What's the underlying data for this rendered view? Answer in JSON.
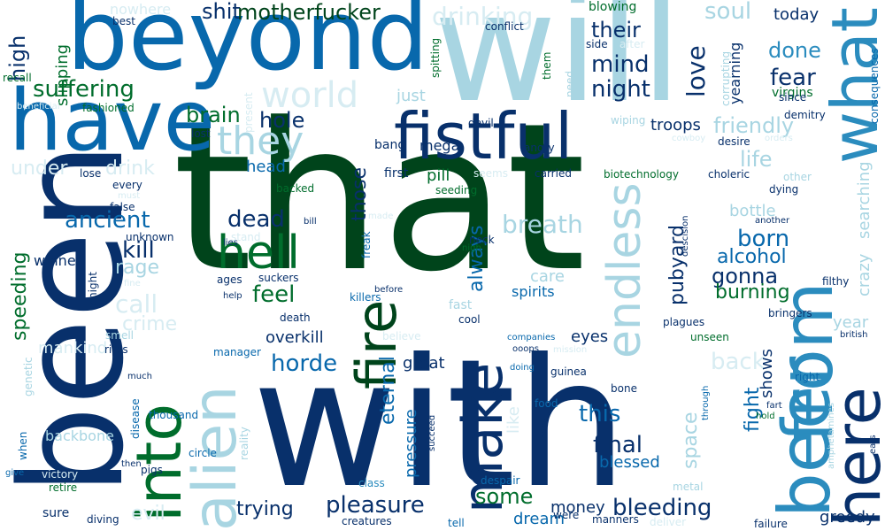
{
  "words": [
    {
      "t": "that",
      "c": "#00441b"
    },
    {
      "t": "with",
      "c": "#08306b"
    },
    {
      "t": "been",
      "c": "#08306b"
    },
    {
      "t": "will",
      "c": "#a8d5e2"
    },
    {
      "t": "beyond",
      "c": "#0868ac"
    },
    {
      "t": "have",
      "c": "#0868ac"
    },
    {
      "t": "fistful",
      "c": "#08306b"
    },
    {
      "t": "from",
      "c": "#2b8cbe"
    },
    {
      "t": "what",
      "c": "#2b8cbe"
    },
    {
      "t": "beer",
      "c": "#2b8cbe"
    },
    {
      "t": "here",
      "c": "#08306b"
    },
    {
      "t": "into",
      "c": "#006d2c"
    },
    {
      "t": "alien",
      "c": "#a8d5e2"
    },
    {
      "t": "make",
      "c": "#08306b"
    },
    {
      "t": "fire",
      "c": "#00441b"
    },
    {
      "t": "hell",
      "c": "#006d2c"
    },
    {
      "t": "endless",
      "c": "#a8d5e2"
    },
    {
      "t": "they",
      "c": "#a8d5e2"
    },
    {
      "t": "world",
      "c": "#d7ecf2"
    },
    {
      "t": "suffering",
      "c": "#006d2c"
    },
    {
      "t": "high",
      "c": "#08306b"
    },
    {
      "t": "drinking",
      "c": "#d7ecf2"
    },
    {
      "t": "shit",
      "c": "#08306b"
    },
    {
      "t": "motherfucker",
      "c": "#00441b"
    },
    {
      "t": "mind",
      "c": "#08306b"
    },
    {
      "t": "night",
      "c": "#08306b"
    },
    {
      "t": "their",
      "c": "#08306b"
    },
    {
      "t": "love",
      "c": "#08306b"
    },
    {
      "t": "soul",
      "c": "#a8d5e2"
    },
    {
      "t": "fear",
      "c": "#08306b"
    },
    {
      "t": "done",
      "c": "#2b8cbe"
    },
    {
      "t": "today",
      "c": "#08306b"
    },
    {
      "t": "brain",
      "c": "#006d2c"
    },
    {
      "t": "hole",
      "c": "#08306b"
    },
    {
      "t": "friendly",
      "c": "#a8d5e2"
    },
    {
      "t": "life",
      "c": "#a8d5e2"
    },
    {
      "t": "ancient",
      "c": "#0868ac"
    },
    {
      "t": "dead",
      "c": "#08306b"
    },
    {
      "t": "kill",
      "c": "#08306b"
    },
    {
      "t": "born",
      "c": "#0868ac"
    },
    {
      "t": "alcohol",
      "c": "#0868ac"
    },
    {
      "t": "gonna",
      "c": "#08306b"
    },
    {
      "t": "burning",
      "c": "#006d2c"
    },
    {
      "t": "breath",
      "c": "#a8d5e2"
    },
    {
      "t": "always",
      "c": "#0868ac"
    },
    {
      "t": "pubyard",
      "c": "#08306b"
    },
    {
      "t": "feel",
      "c": "#006d2c"
    },
    {
      "t": "call",
      "c": "#d7ecf2"
    },
    {
      "t": "crime",
      "c": "#d7ecf2"
    },
    {
      "t": "rage",
      "c": "#a8d5e2"
    },
    {
      "t": "speeding",
      "c": "#006d2c"
    },
    {
      "t": "horde",
      "c": "#0868ac"
    },
    {
      "t": "eternal",
      "c": "#0868ac"
    },
    {
      "t": "back",
      "c": "#d7ecf2"
    },
    {
      "t": "fight",
      "c": "#0868ac"
    },
    {
      "t": "space",
      "c": "#a8d5e2"
    },
    {
      "t": "this",
      "c": "#0868ac"
    },
    {
      "t": "final",
      "c": "#08306b"
    },
    {
      "t": "blessed",
      "c": "#0868ac"
    },
    {
      "t": "trying",
      "c": "#08306b"
    },
    {
      "t": "pleasure",
      "c": "#08306b"
    },
    {
      "t": "some",
      "c": "#006d2c"
    },
    {
      "t": "money",
      "c": "#08306b"
    },
    {
      "t": "bleeding",
      "c": "#08306b"
    },
    {
      "t": "dream",
      "c": "#0868ac"
    },
    {
      "t": "greedy",
      "c": "#08306b"
    },
    {
      "t": "evil",
      "c": "#d7ecf2"
    },
    {
      "t": "head",
      "c": "#0868ac"
    },
    {
      "t": "drink",
      "c": "#d7ecf2"
    },
    {
      "t": "under",
      "c": "#d7ecf2"
    },
    {
      "t": "those",
      "c": "#08306b"
    },
    {
      "t": "troops",
      "c": "#08306b"
    },
    {
      "t": "shows",
      "c": "#08306b"
    },
    {
      "t": "crazy",
      "c": "#a8d5e2"
    },
    {
      "t": "searching",
      "c": "#a8d5e2"
    },
    {
      "t": "bottle",
      "c": "#a8d5e2"
    },
    {
      "t": "pressure",
      "c": "#0868ac"
    },
    {
      "t": "like",
      "c": "#d7ecf2"
    },
    {
      "t": "overkill",
      "c": "#08306b"
    },
    {
      "t": "great",
      "c": "#08306b"
    },
    {
      "t": "year",
      "c": "#a8d5e2"
    },
    {
      "t": "eyes",
      "c": "#08306b"
    },
    {
      "t": "care",
      "c": "#a8d5e2"
    },
    {
      "t": "spirits",
      "c": "#0868ac"
    },
    {
      "t": "pill",
      "c": "#006d2c"
    },
    {
      "t": "winner",
      "c": "#08306b"
    },
    {
      "t": "backbone",
      "c": "#a8d5e2"
    },
    {
      "t": "mankind",
      "c": "#d7ecf2"
    },
    {
      "t": "slipping",
      "c": "#006d2c"
    },
    {
      "t": "nowhere",
      "c": "#d7ecf2"
    },
    {
      "t": "best",
      "c": "#08306b"
    },
    {
      "t": "conflict",
      "c": "#08306b"
    },
    {
      "t": "blowing",
      "c": "#006d2c"
    },
    {
      "t": "side",
      "c": "#08306b"
    },
    {
      "t": "after",
      "c": "#d7ecf2"
    },
    {
      "t": "corrupting",
      "c": "#a8d5e2"
    },
    {
      "t": "yearning",
      "c": "#08306b"
    },
    {
      "t": "virgins",
      "c": "#006d2c"
    },
    {
      "t": "demitry",
      "c": "#08306b"
    },
    {
      "t": "consequences",
      "c": "#0868ac"
    },
    {
      "t": "since",
      "c": "#08306b"
    },
    {
      "t": "recall",
      "c": "#006d2c"
    },
    {
      "t": "spitting",
      "c": "#006d2c"
    },
    {
      "t": "present",
      "c": "#d7ecf2"
    },
    {
      "t": "beneficial",
      "c": "#d7ecf2"
    },
    {
      "t": "fashioned",
      "c": "#006d2c"
    },
    {
      "t": "just",
      "c": "#a8d5e2"
    },
    {
      "t": "them",
      "c": "#006d2c"
    },
    {
      "t": "need",
      "c": "#a8d5e2"
    },
    {
      "t": "devil",
      "c": "#08306b"
    },
    {
      "t": "wiping",
      "c": "#a8d5e2"
    },
    {
      "t": "lost",
      "c": "#08306b"
    },
    {
      "t": "mega",
      "c": "#08306b"
    },
    {
      "t": "bang",
      "c": "#08306b"
    },
    {
      "t": "angry",
      "c": "#08306b"
    },
    {
      "t": "cowboy",
      "c": "#d7ecf2"
    },
    {
      "t": "desire",
      "c": "#08306b"
    },
    {
      "t": "orders",
      "c": "#d7ecf2"
    },
    {
      "t": "first",
      "c": "#08306b"
    },
    {
      "t": "carried",
      "c": "#08306b"
    },
    {
      "t": "seems",
      "c": "#d7ecf2"
    },
    {
      "t": "biotechnology",
      "c": "#006d2c"
    },
    {
      "t": "choleric",
      "c": "#08306b"
    },
    {
      "t": "other",
      "c": "#a8d5e2"
    },
    {
      "t": "dying",
      "c": "#08306b"
    },
    {
      "t": "lose",
      "c": "#08306b"
    },
    {
      "t": "every",
      "c": "#08306b"
    },
    {
      "t": "must",
      "c": "#d7ecf2"
    },
    {
      "t": "backed",
      "c": "#006d2c"
    },
    {
      "t": "seeding",
      "c": "#006d2c"
    },
    {
      "t": "false",
      "c": "#08306b"
    },
    {
      "t": "bill",
      "c": "#08306b"
    },
    {
      "t": "made",
      "c": "#d7ecf2"
    },
    {
      "t": "lies",
      "c": "#08306b"
    },
    {
      "t": "stand",
      "c": "#d7ecf2"
    },
    {
      "t": "unknown",
      "c": "#08306b"
    },
    {
      "t": "neck",
      "c": "#08306b"
    },
    {
      "t": "freak",
      "c": "#0868ac"
    },
    {
      "t": "nigh",
      "c": "#006d2c"
    },
    {
      "t": "descision",
      "c": "#08306b"
    },
    {
      "t": "another",
      "c": "#08306b"
    },
    {
      "t": "filthy",
      "c": "#08306b"
    },
    {
      "t": "ages",
      "c": "#08306b"
    },
    {
      "t": "suckers",
      "c": "#08306b"
    },
    {
      "t": "before",
      "c": "#08306b"
    },
    {
      "t": "tonight",
      "c": "#08306b"
    },
    {
      "t": "help",
      "c": "#08306b"
    },
    {
      "t": "fine",
      "c": "#d7ecf2"
    },
    {
      "t": "killers",
      "c": "#0868ac"
    },
    {
      "t": "fast",
      "c": "#a8d5e2"
    },
    {
      "t": "death",
      "c": "#08306b"
    },
    {
      "t": "cool",
      "c": "#08306b"
    },
    {
      "t": "plagues",
      "c": "#08306b"
    },
    {
      "t": "bringers",
      "c": "#08306b"
    },
    {
      "t": "unseen",
      "c": "#006d2c"
    },
    {
      "t": "british",
      "c": "#08306b"
    },
    {
      "t": "smell",
      "c": "#a8d5e2"
    },
    {
      "t": "rites",
      "c": "#08306b"
    },
    {
      "t": "believe",
      "c": "#d7ecf2"
    },
    {
      "t": "companies",
      "c": "#0868ac"
    },
    {
      "t": "ooops",
      "c": "#08306b"
    },
    {
      "t": "mission",
      "c": "#d7ecf2"
    },
    {
      "t": "genetic",
      "c": "#a8d5e2"
    },
    {
      "t": "manager",
      "c": "#0868ac"
    },
    {
      "t": "much",
      "c": "#08306b"
    },
    {
      "t": "when",
      "c": "#0868ac"
    },
    {
      "t": "disease",
      "c": "#0868ac"
    },
    {
      "t": "thousand",
      "c": "#0868ac"
    },
    {
      "t": "reality",
      "c": "#a8d5e2"
    },
    {
      "t": "doing",
      "c": "#0868ac"
    },
    {
      "t": "guinea",
      "c": "#08306b"
    },
    {
      "t": "right",
      "c": "#0868ac"
    },
    {
      "t": "bone",
      "c": "#08306b"
    },
    {
      "t": "fart",
      "c": "#08306b"
    },
    {
      "t": "hold",
      "c": "#006d2c"
    },
    {
      "t": "amphetamines",
      "c": "#a8d5e2"
    },
    {
      "t": "ears",
      "c": "#08306b"
    },
    {
      "t": "food",
      "c": "#0868ac"
    },
    {
      "t": "through",
      "c": "#0868ac"
    },
    {
      "t": "thank",
      "c": "#08306b"
    },
    {
      "t": "pigs",
      "c": "#08306b"
    },
    {
      "t": "circle",
      "c": "#0868ac"
    },
    {
      "t": "succeed",
      "c": "#08306b"
    },
    {
      "t": "then",
      "c": "#08306b"
    },
    {
      "t": "victory",
      "c": "#d7ecf2"
    },
    {
      "t": "give",
      "c": "#0868ac"
    },
    {
      "t": "retire",
      "c": "#006d2c"
    },
    {
      "t": "class",
      "c": "#2b8cbe"
    },
    {
      "t": "despair",
      "c": "#0868ac"
    },
    {
      "t": "metal",
      "c": "#a8d5e2"
    },
    {
      "t": "sure",
      "c": "#08306b"
    },
    {
      "t": "diving",
      "c": "#08306b"
    },
    {
      "t": "creatures",
      "c": "#08306b"
    },
    {
      "t": "tell",
      "c": "#0868ac"
    },
    {
      "t": "were",
      "c": "#08306b"
    },
    {
      "t": "manners",
      "c": "#08306b"
    },
    {
      "t": "deliver",
      "c": "#d7ecf2"
    },
    {
      "t": "failure",
      "c": "#08306b"
    }
  ]
}
